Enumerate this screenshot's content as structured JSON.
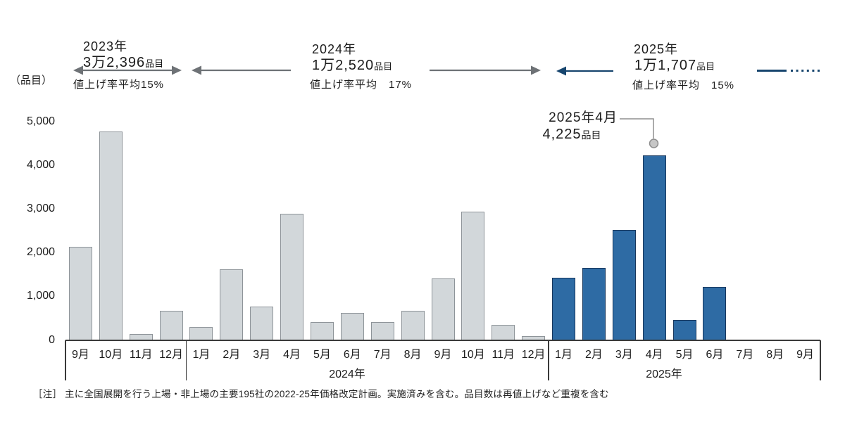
{
  "unit_label": "（品目）",
  "periods": [
    {
      "year_label": "2023年",
      "total": "3万2,396",
      "total_suffix": "品目",
      "rate_label": "値上げ率平均15%"
    },
    {
      "year_label": "2024年",
      "total": "1万2,520",
      "total_suffix": "品目",
      "rate_label": "値上げ率平均　17%"
    },
    {
      "year_label": "2025年",
      "total": "1万1,707",
      "total_suffix": "品目",
      "rate_label": "値上げ率平均　15%"
    }
  ],
  "callout": {
    "line1": "2025年4月",
    "value": "4,225",
    "value_suffix": "品目"
  },
  "note": "［注］ 主に全国展開を行う上場・非上場の主要195社の2022-25年価格改定計画。実施済みを含む。品目数は再値上げなど重複を含む",
  "colors": {
    "past_bar": "#d2d7da",
    "past_bar_border": "#8e9499",
    "current_bar": "#2e6ba4",
    "current_bar_border": "#17365c",
    "arrow_gray": "#6e7276",
    "arrow_blue": "#17456e"
  },
  "chart_data": {
    "type": "bar",
    "title": "",
    "ylabel": "（品目）",
    "ylim": [
      0,
      5000
    ],
    "yticks": [
      0,
      1000,
      2000,
      3000,
      4000,
      5000
    ],
    "ytick_labels": [
      "0",
      "1,000",
      "2,000",
      "3,000",
      "4,000",
      "5,000"
    ],
    "grid": false,
    "legend": "none",
    "groups": [
      {
        "year": "2023年",
        "axis_label": "",
        "series_style": "past",
        "months": [
          "9月",
          "10月",
          "11月",
          "12月"
        ],
        "values": [
          2140,
          4770,
          140,
          680
        ]
      },
      {
        "year": "2024年",
        "axis_label": "2024年",
        "series_style": "past",
        "months": [
          "1月",
          "2月",
          "3月",
          "4月",
          "5月",
          "6月",
          "7月",
          "8月",
          "9月",
          "10月",
          "11月",
          "12月"
        ],
        "values": [
          310,
          1620,
          770,
          2900,
          420,
          630,
          410,
          670,
          1420,
          2940,
          360,
          100
        ]
      },
      {
        "year": "2025年",
        "axis_label": "2025年",
        "series_style": "current",
        "months": [
          "1月",
          "2月",
          "3月",
          "4月",
          "5月",
          "6月",
          "7月",
          "8月",
          "9月"
        ],
        "values": [
          1430,
          1660,
          2530,
          4225,
          460,
          1220,
          null,
          null,
          null
        ]
      }
    ],
    "annotated_point": {
      "label": "2025年4月",
      "value": 4225
    }
  }
}
